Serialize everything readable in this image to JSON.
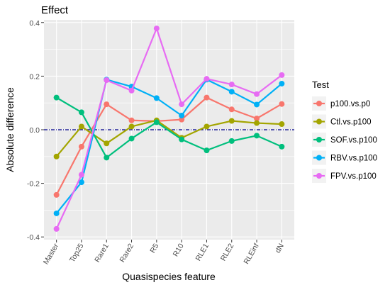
{
  "chart_data": {
    "type": "line",
    "title": "Effect",
    "xlabel": "Quasispecies feature",
    "ylabel": "Absolute difference",
    "categories": [
      "Master",
      "Top25",
      "Rare1",
      "Rare2",
      "R5",
      "R10",
      "RLE1",
      "RLE2",
      "RLEinf",
      "dN"
    ],
    "yticks": [
      "-0.4",
      "-0.2",
      "0.0",
      "0.2",
      "0.4"
    ],
    "ylim": [
      -0.41,
      0.41
    ],
    "grid": true,
    "reference_line": {
      "y": 0,
      "style": "dash-dot",
      "color": "#00008b"
    },
    "legend": {
      "title": "Test",
      "position": "right"
    },
    "series": [
      {
        "name": "p100.vs.p0",
        "color": "#F8766D",
        "values": [
          -0.243,
          -0.063,
          0.095,
          0.035,
          0.032,
          0.038,
          0.12,
          0.076,
          0.042,
          0.096
        ]
      },
      {
        "name": "Ctl.vs.p100",
        "color": "#A3A500",
        "values": [
          -0.1,
          0.012,
          -0.051,
          0.012,
          0.035,
          -0.03,
          0.012,
          0.033,
          0.025,
          0.021
        ]
      },
      {
        "name": "SOF.vs.p100",
        "color": "#00BF7D",
        "values": [
          0.12,
          0.065,
          -0.104,
          -0.033,
          0.028,
          -0.036,
          -0.077,
          -0.042,
          -0.022,
          -0.063
        ]
      },
      {
        "name": "RBV.vs.p100",
        "color": "#00B0F6",
        "values": [
          -0.312,
          -0.196,
          0.187,
          0.161,
          0.118,
          0.053,
          0.187,
          0.142,
          0.094,
          0.172
        ]
      },
      {
        "name": "FPV.vs.p100",
        "color": "#E76BF3",
        "values": [
          -0.37,
          -0.168,
          0.185,
          0.146,
          0.378,
          0.095,
          0.19,
          0.169,
          0.133,
          0.204
        ]
      }
    ]
  }
}
